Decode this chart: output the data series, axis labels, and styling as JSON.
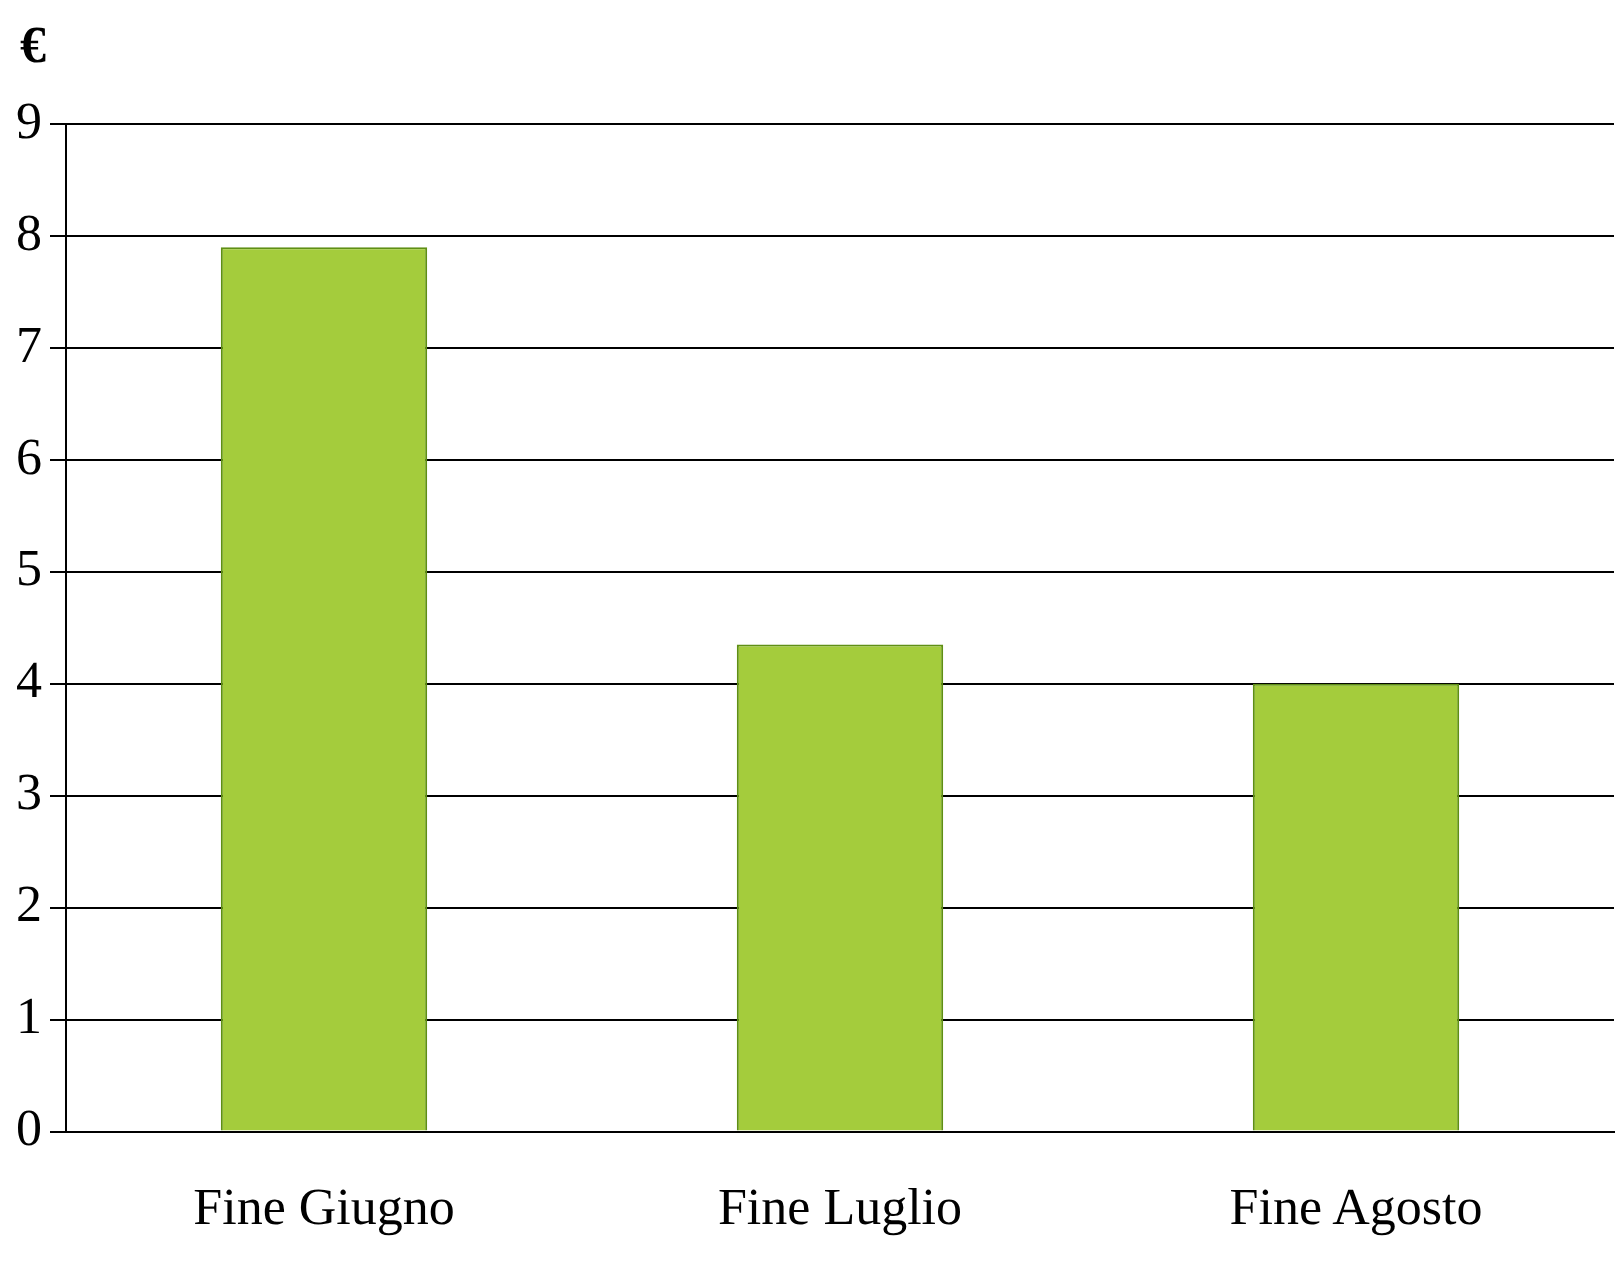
{
  "chart_data": {
    "type": "bar",
    "ylabel": "€",
    "categories": [
      "Fine Giugno",
      "Fine Luglio",
      "Fine Agosto"
    ],
    "values": [
      7.9,
      4.35,
      4.0
    ],
    "color": "#a4cc3c",
    "ylim": [
      0,
      9
    ],
    "yticks": [
      0,
      1,
      2,
      3,
      4,
      5,
      6,
      7,
      8,
      9
    ],
    "grid": "y",
    "legend": false
  }
}
